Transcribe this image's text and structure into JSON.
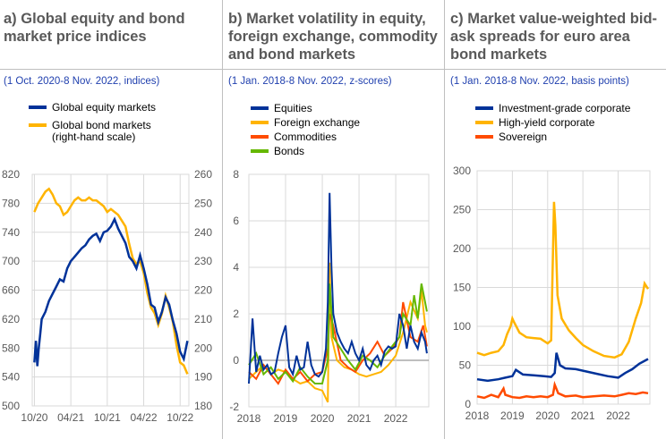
{
  "panels": [
    {
      "title": "a) Global equity and bond market price indices",
      "subtitle": "(1 Oct. 2020-8 Nov. 2022, indices)"
    },
    {
      "title": "b) Market volatility in equity, foreign exchange, commodity and bond markets",
      "subtitle": "(1 Jan. 2018-8 Nov. 2022, z-scores)"
    },
    {
      "title": "c) Market value-weighted bid-ask spreads for euro area bond markets",
      "subtitle": "(1 Jan. 2018-8 Nov. 2022, basis points)"
    }
  ],
  "colors": {
    "blue": "#003299",
    "yellow": "#ffb400",
    "orange": "#ff4b00",
    "green": "#65b800"
  },
  "chart_data": [
    {
      "type": "line",
      "title": "a) Global equity and bond market price indices",
      "subtitle": "(1 Oct. 2020-8 Nov. 2022, indices)",
      "x_ticks": [
        "10/20",
        "04/21",
        "10/21",
        "04/22",
        "10/22"
      ],
      "y_left": {
        "ticks": [
          500,
          540,
          580,
          620,
          660,
          700,
          740,
          780,
          820
        ],
        "lim": [
          500,
          820
        ]
      },
      "y_right": {
        "ticks": [
          180,
          190,
          200,
          210,
          220,
          230,
          240,
          250,
          260
        ],
        "lim": [
          180,
          260
        ]
      },
      "grid": true,
      "legend": [
        "Global equity markets",
        "Global bond markets (right-hand scale)"
      ],
      "series": [
        {
          "name": "Global equity markets",
          "axis": "left",
          "color": "#003299",
          "x": [
            2020.75,
            2020.77,
            2020.79,
            2020.81,
            2020.83,
            2020.85,
            2020.9,
            2020.95,
            2021.0,
            2021.05,
            2021.1,
            2021.15,
            2021.2,
            2021.25,
            2021.3,
            2021.35,
            2021.4,
            2021.45,
            2021.5,
            2021.55,
            2021.6,
            2021.65,
            2021.7,
            2021.75,
            2021.8,
            2021.85,
            2021.9,
            2021.95,
            2022.0,
            2022.05,
            2022.1,
            2022.15,
            2022.2,
            2022.25,
            2022.3,
            2022.35,
            2022.4,
            2022.45,
            2022.5,
            2022.55,
            2022.6,
            2022.65,
            2022.7,
            2022.75,
            2022.8,
            2022.85
          ],
          "y": [
            560,
            590,
            555,
            580,
            600,
            620,
            630,
            645,
            655,
            665,
            675,
            672,
            690,
            700,
            706,
            712,
            718,
            722,
            730,
            735,
            738,
            728,
            740,
            742,
            748,
            758,
            745,
            735,
            725,
            706,
            700,
            690,
            708,
            690,
            668,
            640,
            636,
            616,
            630,
            650,
            640,
            618,
            600,
            575,
            565,
            590
          ]
        },
        {
          "name": "Global bond markets (right-hand scale)",
          "axis": "right",
          "color": "#ffb400",
          "x": [
            2020.75,
            2020.8,
            2020.85,
            2020.9,
            2020.95,
            2021.0,
            2021.05,
            2021.1,
            2021.15,
            2021.2,
            2021.25,
            2021.3,
            2021.35,
            2021.4,
            2021.45,
            2021.5,
            2021.55,
            2021.6,
            2021.65,
            2021.7,
            2021.75,
            2021.8,
            2021.85,
            2021.9,
            2021.95,
            2022.0,
            2022.05,
            2022.1,
            2022.15,
            2022.2,
            2022.25,
            2022.3,
            2022.35,
            2022.4,
            2022.45,
            2022.5,
            2022.55,
            2022.6,
            2022.65,
            2022.7,
            2022.75,
            2022.8,
            2022.85
          ],
          "y": [
            247,
            250,
            252,
            254,
            255,
            253,
            250,
            249,
            246,
            247,
            249,
            251,
            252,
            251,
            251,
            252,
            251,
            251,
            250,
            249,
            247,
            248,
            247,
            246,
            244,
            242,
            236,
            231,
            229,
            230,
            226,
            219,
            214,
            212,
            208,
            212,
            218,
            214,
            209,
            201,
            195,
            194,
            191
          ]
        }
      ]
    },
    {
      "type": "line",
      "title": "b) Market volatility in equity, foreign exchange, commodity and bond markets",
      "subtitle": "(1 Jan. 2018-8 Nov. 2022, z-scores)",
      "x_ticks": [
        "2018",
        "2019",
        "2020",
        "2021",
        "2022"
      ],
      "y_ticks": [
        -2,
        0,
        2,
        4,
        6,
        8
      ],
      "ylim": [
        -2,
        8
      ],
      "grid": true,
      "legend": [
        "Equities",
        "Foreign exchange",
        "Commodities",
        "Bonds"
      ],
      "series": [
        {
          "name": "Equities",
          "color": "#003299",
          "x": [
            2018.0,
            2018.1,
            2018.2,
            2018.3,
            2018.4,
            2018.5,
            2018.6,
            2018.7,
            2018.8,
            2018.9,
            2019.0,
            2019.1,
            2019.2,
            2019.3,
            2019.4,
            2019.5,
            2019.6,
            2019.7,
            2019.8,
            2019.9,
            2020.0,
            2020.1,
            2020.15,
            2020.2,
            2020.25,
            2020.3,
            2020.4,
            2020.5,
            2020.6,
            2020.7,
            2020.8,
            2020.9,
            2021.0,
            2021.1,
            2021.2,
            2021.3,
            2021.4,
            2021.5,
            2021.6,
            2021.7,
            2021.8,
            2021.9,
            2022.0,
            2022.1,
            2022.2,
            2022.3,
            2022.4,
            2022.5,
            2022.6,
            2022.7,
            2022.8,
            2022.85
          ],
          "y": [
            -1.0,
            1.8,
            -0.5,
            0.2,
            -0.4,
            -0.2,
            -0.6,
            -0.5,
            0.3,
            1.0,
            1.5,
            -0.3,
            -0.6,
            0.2,
            -0.4,
            -0.3,
            0.8,
            -0.2,
            -0.6,
            -0.7,
            -0.5,
            0.5,
            2.5,
            7.2,
            4.0,
            2.0,
            1.2,
            0.8,
            0.5,
            0.3,
            0.8,
            0.3,
            0.0,
            0.5,
            -0.2,
            -0.4,
            0.0,
            0.2,
            -0.2,
            0.4,
            0.6,
            0.5,
            0.6,
            2.0,
            1.5,
            0.5,
            1.5,
            0.8,
            0.5,
            1.2,
            0.8,
            0.3
          ]
        },
        {
          "name": "Foreign exchange",
          "color": "#ffb400",
          "x": [
            2018.0,
            2018.2,
            2018.4,
            2018.6,
            2018.8,
            2019.0,
            2019.2,
            2019.4,
            2019.6,
            2019.8,
            2020.0,
            2020.15,
            2020.2,
            2020.25,
            2020.4,
            2020.6,
            2020.8,
            2021.0,
            2021.2,
            2021.4,
            2021.6,
            2021.8,
            2022.0,
            2022.2,
            2022.4,
            2022.6,
            2022.7,
            2022.8,
            2022.85
          ],
          "y": [
            -0.8,
            -0.5,
            -0.2,
            -0.6,
            -0.4,
            -0.5,
            -0.8,
            -1.0,
            -0.9,
            -1.2,
            -1.3,
            -1.8,
            4.2,
            1.0,
            0.0,
            -0.3,
            -0.4,
            -0.6,
            -0.7,
            -0.6,
            -0.5,
            -0.2,
            0.2,
            1.2,
            2.5,
            1.8,
            3.0,
            1.5,
            1.2
          ]
        },
        {
          "name": "Commodities",
          "color": "#ff4b00",
          "x": [
            2018.0,
            2018.2,
            2018.4,
            2018.6,
            2018.8,
            2019.0,
            2019.2,
            2019.4,
            2019.6,
            2019.8,
            2020.0,
            2020.15,
            2020.2,
            2020.3,
            2020.5,
            2020.7,
            2020.9,
            2021.1,
            2021.3,
            2021.5,
            2021.7,
            2021.9,
            2022.1,
            2022.2,
            2022.4,
            2022.6,
            2022.75,
            2022.85
          ],
          "y": [
            -0.5,
            -0.8,
            -0.2,
            -0.6,
            -1.0,
            -0.4,
            -0.8,
            -0.5,
            -0.9,
            -0.6,
            -0.5,
            0.5,
            2.0,
            1.5,
            0.0,
            -0.3,
            -0.5,
            0.0,
            0.3,
            0.8,
            0.2,
            0.5,
            1.0,
            2.5,
            1.0,
            0.8,
            1.5,
            0.6
          ]
        },
        {
          "name": "Bonds",
          "color": "#65b800",
          "x": [
            2018.0,
            2018.2,
            2018.4,
            2018.6,
            2018.8,
            2019.0,
            2019.2,
            2019.4,
            2019.6,
            2019.8,
            2020.0,
            2020.15,
            2020.2,
            2020.3,
            2020.5,
            2020.7,
            2020.9,
            2021.1,
            2021.3,
            2021.5,
            2021.7,
            2021.9,
            2022.1,
            2022.2,
            2022.4,
            2022.5,
            2022.6,
            2022.7,
            2022.8,
            2022.85
          ],
          "y": [
            -0.2,
            0.3,
            -0.6,
            -0.3,
            -0.8,
            -0.5,
            -0.9,
            -0.3,
            -0.7,
            -1.0,
            -1.0,
            0.0,
            3.3,
            1.0,
            0.5,
            0.0,
            -0.4,
            0.2,
            0.0,
            -0.3,
            0.2,
            0.6,
            1.0,
            2.0,
            1.5,
            2.8,
            1.8,
            3.3,
            2.5,
            2.1
          ]
        }
      ]
    },
    {
      "type": "line",
      "title": "c) Market value-weighted bid-ask spreads for euro area bond markets",
      "subtitle": "(1 Jan. 2018-8 Nov. 2022, basis points)",
      "x_ticks": [
        "2018",
        "2019",
        "2020",
        "2021",
        "2022"
      ],
      "y_ticks": [
        0,
        50,
        100,
        150,
        200,
        250,
        300
      ],
      "ylim": [
        0,
        300
      ],
      "grid": true,
      "legend": [
        "Investment-grade corporate",
        "High-yield corporate",
        "Sovereign"
      ],
      "series": [
        {
          "name": "Investment-grade corporate",
          "color": "#003299",
          "x": [
            2018.0,
            2018.3,
            2018.6,
            2018.8,
            2019.0,
            2019.1,
            2019.3,
            2019.6,
            2019.9,
            2020.1,
            2020.2,
            2020.25,
            2020.35,
            2020.5,
            2020.8,
            2021.1,
            2021.4,
            2021.7,
            2022.0,
            2022.2,
            2022.4,
            2022.6,
            2022.85
          ],
          "y": [
            32,
            30,
            32,
            34,
            36,
            44,
            38,
            37,
            36,
            35,
            40,
            66,
            50,
            46,
            45,
            42,
            39,
            36,
            34,
            40,
            45,
            52,
            58
          ]
        },
        {
          "name": "High-yield corporate",
          "color": "#ffb400",
          "x": [
            2018.0,
            2018.2,
            2018.4,
            2018.6,
            2018.75,
            2018.85,
            2018.95,
            2019.0,
            2019.05,
            2019.2,
            2019.4,
            2019.6,
            2019.8,
            2020.0,
            2020.1,
            2020.18,
            2020.22,
            2020.28,
            2020.4,
            2020.6,
            2020.8,
            2021.0,
            2021.3,
            2021.6,
            2021.9,
            2022.1,
            2022.3,
            2022.5,
            2022.65,
            2022.75,
            2022.85
          ],
          "y": [
            66,
            63,
            66,
            68,
            76,
            90,
            100,
            110,
            105,
            92,
            86,
            85,
            84,
            78,
            82,
            260,
            230,
            140,
            110,
            95,
            85,
            76,
            68,
            62,
            60,
            64,
            80,
            110,
            130,
            155,
            148
          ]
        },
        {
          "name": "Sovereign",
          "color": "#ff4b00",
          "x": [
            2018.0,
            2018.2,
            2018.4,
            2018.6,
            2018.75,
            2018.8,
            2019.0,
            2019.2,
            2019.4,
            2019.6,
            2019.8,
            2020.0,
            2020.15,
            2020.2,
            2020.3,
            2020.5,
            2020.8,
            2021.0,
            2021.3,
            2021.6,
            2021.9,
            2022.1,
            2022.3,
            2022.5,
            2022.7,
            2022.85
          ],
          "y": [
            10,
            8,
            12,
            9,
            20,
            12,
            9,
            8,
            10,
            9,
            10,
            9,
            12,
            25,
            14,
            10,
            11,
            9,
            10,
            11,
            10,
            12,
            14,
            13,
            15,
            14
          ]
        }
      ]
    }
  ]
}
